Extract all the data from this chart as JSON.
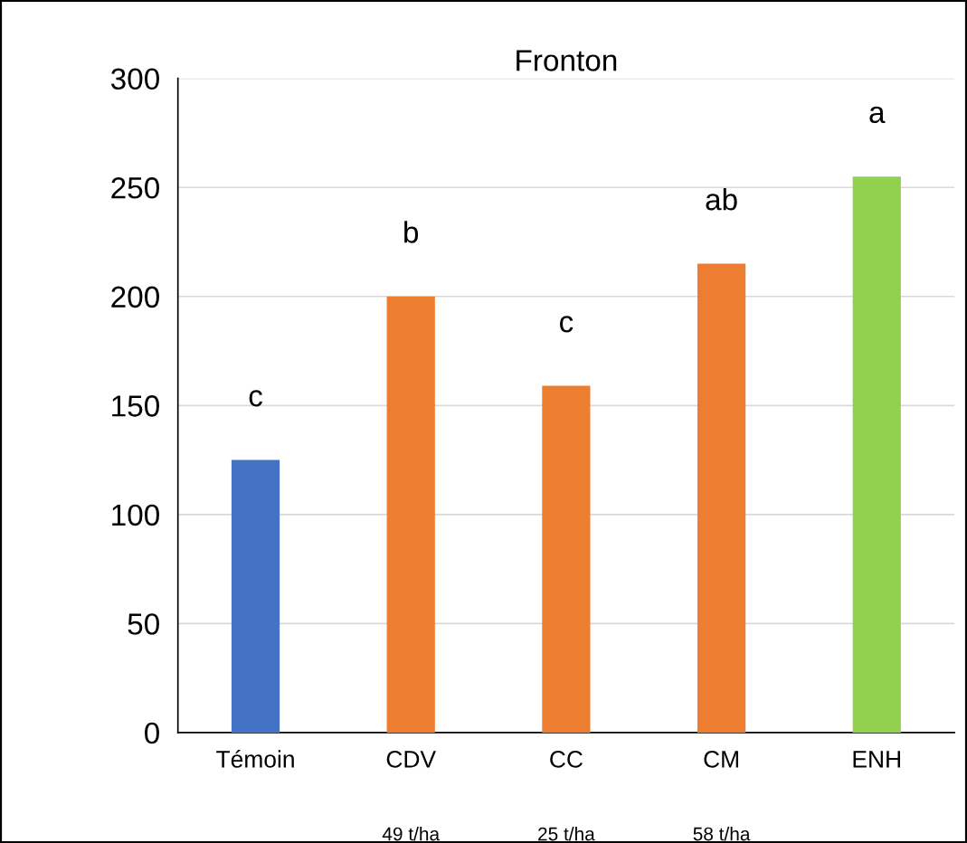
{
  "chart_data": {
    "type": "bar",
    "title": "Fronton",
    "categories": [
      "Témoin",
      "CDV\n49 t/ha",
      "CC\n25 t/ha",
      "CM\n58 t/ha",
      "ENH"
    ],
    "values": [
      125,
      200,
      159,
      215,
      255
    ],
    "colors": [
      "#4472c4",
      "#ed7d31",
      "#ed7d31",
      "#ed7d31",
      "#92d050"
    ],
    "ylim": [
      0,
      300
    ],
    "yticks": [
      0,
      50,
      100,
      150,
      200,
      250,
      300
    ],
    "grid": "y",
    "annotations": [
      "c",
      "b",
      "c",
      "ab",
      "a"
    ]
  }
}
